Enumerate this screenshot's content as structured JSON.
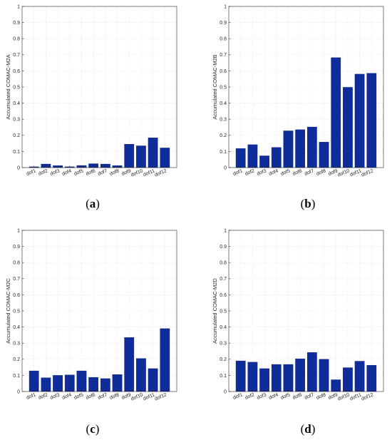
{
  "chart_data": [
    {
      "type": "bar",
      "panel_label": "a",
      "ylabel": "Accumulated COMAC-M2A",
      "xlabel": "",
      "categories": [
        "dof1",
        "dof2",
        "dof3",
        "dof4",
        "dof5",
        "dof6",
        "dof7",
        "dof8",
        "dof9",
        "dof10",
        "dof11",
        "dof12"
      ],
      "values": [
        0.005,
        0.022,
        0.012,
        0.005,
        0.013,
        0.024,
        0.022,
        0.012,
        0.145,
        0.135,
        0.185,
        0.122
      ],
      "ylim": [
        0,
        1
      ],
      "yticks": [
        0,
        0.1,
        0.2,
        0.3,
        0.4,
        0.5,
        0.6,
        0.7,
        0.8,
        0.9,
        1
      ],
      "grid": true,
      "bar_color": "#0f2d9a"
    },
    {
      "type": "bar",
      "panel_label": "b",
      "ylabel": "Accumulated COMAC-M2B",
      "xlabel": "",
      "categories": [
        "dof1",
        "dof2",
        "dof3",
        "dof4",
        "dof5",
        "dof6",
        "dof7",
        "dof8",
        "dof9",
        "dof10",
        "dof11",
        "dof12"
      ],
      "values": [
        0.118,
        0.142,
        0.073,
        0.125,
        0.228,
        0.235,
        0.252,
        0.158,
        0.682,
        0.498,
        0.58,
        0.585
      ],
      "ylim": [
        0,
        1
      ],
      "yticks": [
        0,
        0.1,
        0.2,
        0.3,
        0.4,
        0.5,
        0.6,
        0.7,
        0.8,
        0.9,
        1
      ],
      "grid": true,
      "bar_color": "#0f2d9a"
    },
    {
      "type": "bar",
      "panel_label": "c",
      "ylabel": "Accumulated COMAC-M2C",
      "xlabel": "",
      "categories": [
        "dof1",
        "dof2",
        "dof3",
        "dof4",
        "dof5",
        "dof6",
        "dof7",
        "dof8",
        "dof9",
        "dof10",
        "dof11",
        "dof12"
      ],
      "values": [
        0.128,
        0.085,
        0.1,
        0.103,
        0.128,
        0.088,
        0.08,
        0.105,
        0.335,
        0.205,
        0.142,
        0.39
      ],
      "ylim": [
        0,
        1
      ],
      "yticks": [
        0,
        0.1,
        0.2,
        0.3,
        0.4,
        0.5,
        0.6,
        0.7,
        0.8,
        0.9,
        1
      ],
      "grid": true,
      "bar_color": "#0f2d9a"
    },
    {
      "type": "bar",
      "panel_label": "d",
      "ylabel": "Accumulated COMAC-M2D",
      "xlabel": "",
      "categories": [
        "dof1",
        "dof2",
        "dof3",
        "dof4",
        "dof5",
        "dof6",
        "dof7",
        "dof8",
        "dof9",
        "dof10",
        "dof11",
        "dof12"
      ],
      "values": [
        0.19,
        0.182,
        0.142,
        0.168,
        0.168,
        0.203,
        0.242,
        0.2,
        0.073,
        0.148,
        0.188,
        0.163
      ],
      "ylim": [
        0,
        1
      ],
      "yticks": [
        0,
        0.1,
        0.2,
        0.3,
        0.4,
        0.5,
        0.6,
        0.7,
        0.8,
        0.9,
        1
      ],
      "grid": true,
      "bar_color": "#0f2d9a"
    }
  ]
}
